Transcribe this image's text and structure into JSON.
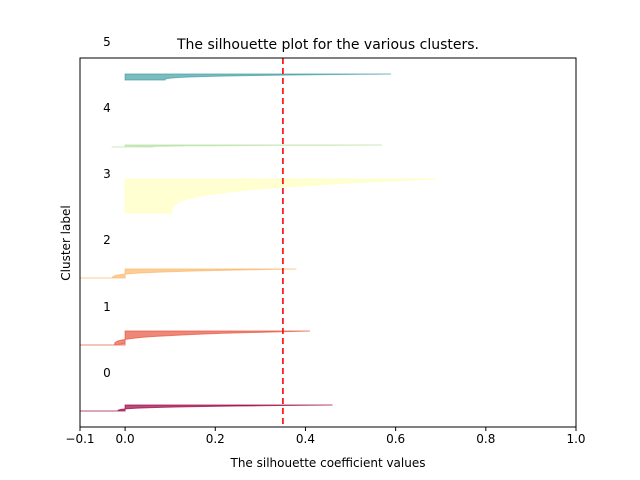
{
  "chart_data": {
    "type": "area",
    "title": "The silhouette plot for the various clusters.",
    "xlabel": "The silhouette coefficient values",
    "ylabel": "Cluster label",
    "xlim": [
      -0.1,
      1.0
    ],
    "x_ticks": [
      -0.1,
      0.0,
      0.2,
      0.4,
      0.6,
      0.8,
      1.0
    ],
    "x_tick_labels": [
      "−0.1",
      "0.0",
      "0.2",
      "0.4",
      "0.6",
      "0.8",
      "1.0"
    ],
    "cluster_labels": [
      "0",
      "1",
      "2",
      "3",
      "4",
      "5"
    ],
    "y_ticks": [],
    "grid": false,
    "average_silhouette": 0.35,
    "average_line_color": "#ff0000",
    "clusters": [
      {
        "label": "0",
        "color": "#9e0142",
        "min_value": -0.1,
        "max_value": 0.46
      },
      {
        "label": "1",
        "color": "#e8553f",
        "min_value": -0.1,
        "max_value": 0.41
      },
      {
        "label": "2",
        "color": "#fbb869",
        "min_value": -0.1,
        "max_value": 0.38
      },
      {
        "label": "3",
        "color": "#ffffbe",
        "min_value": 0.0,
        "max_value": 0.69
      },
      {
        "label": "4",
        "color": "#b7e1a1",
        "min_value": -0.03,
        "max_value": 0.57
      },
      {
        "label": "5",
        "color": "#439fa4",
        "min_value": 0.0,
        "max_value": 0.59
      }
    ]
  }
}
